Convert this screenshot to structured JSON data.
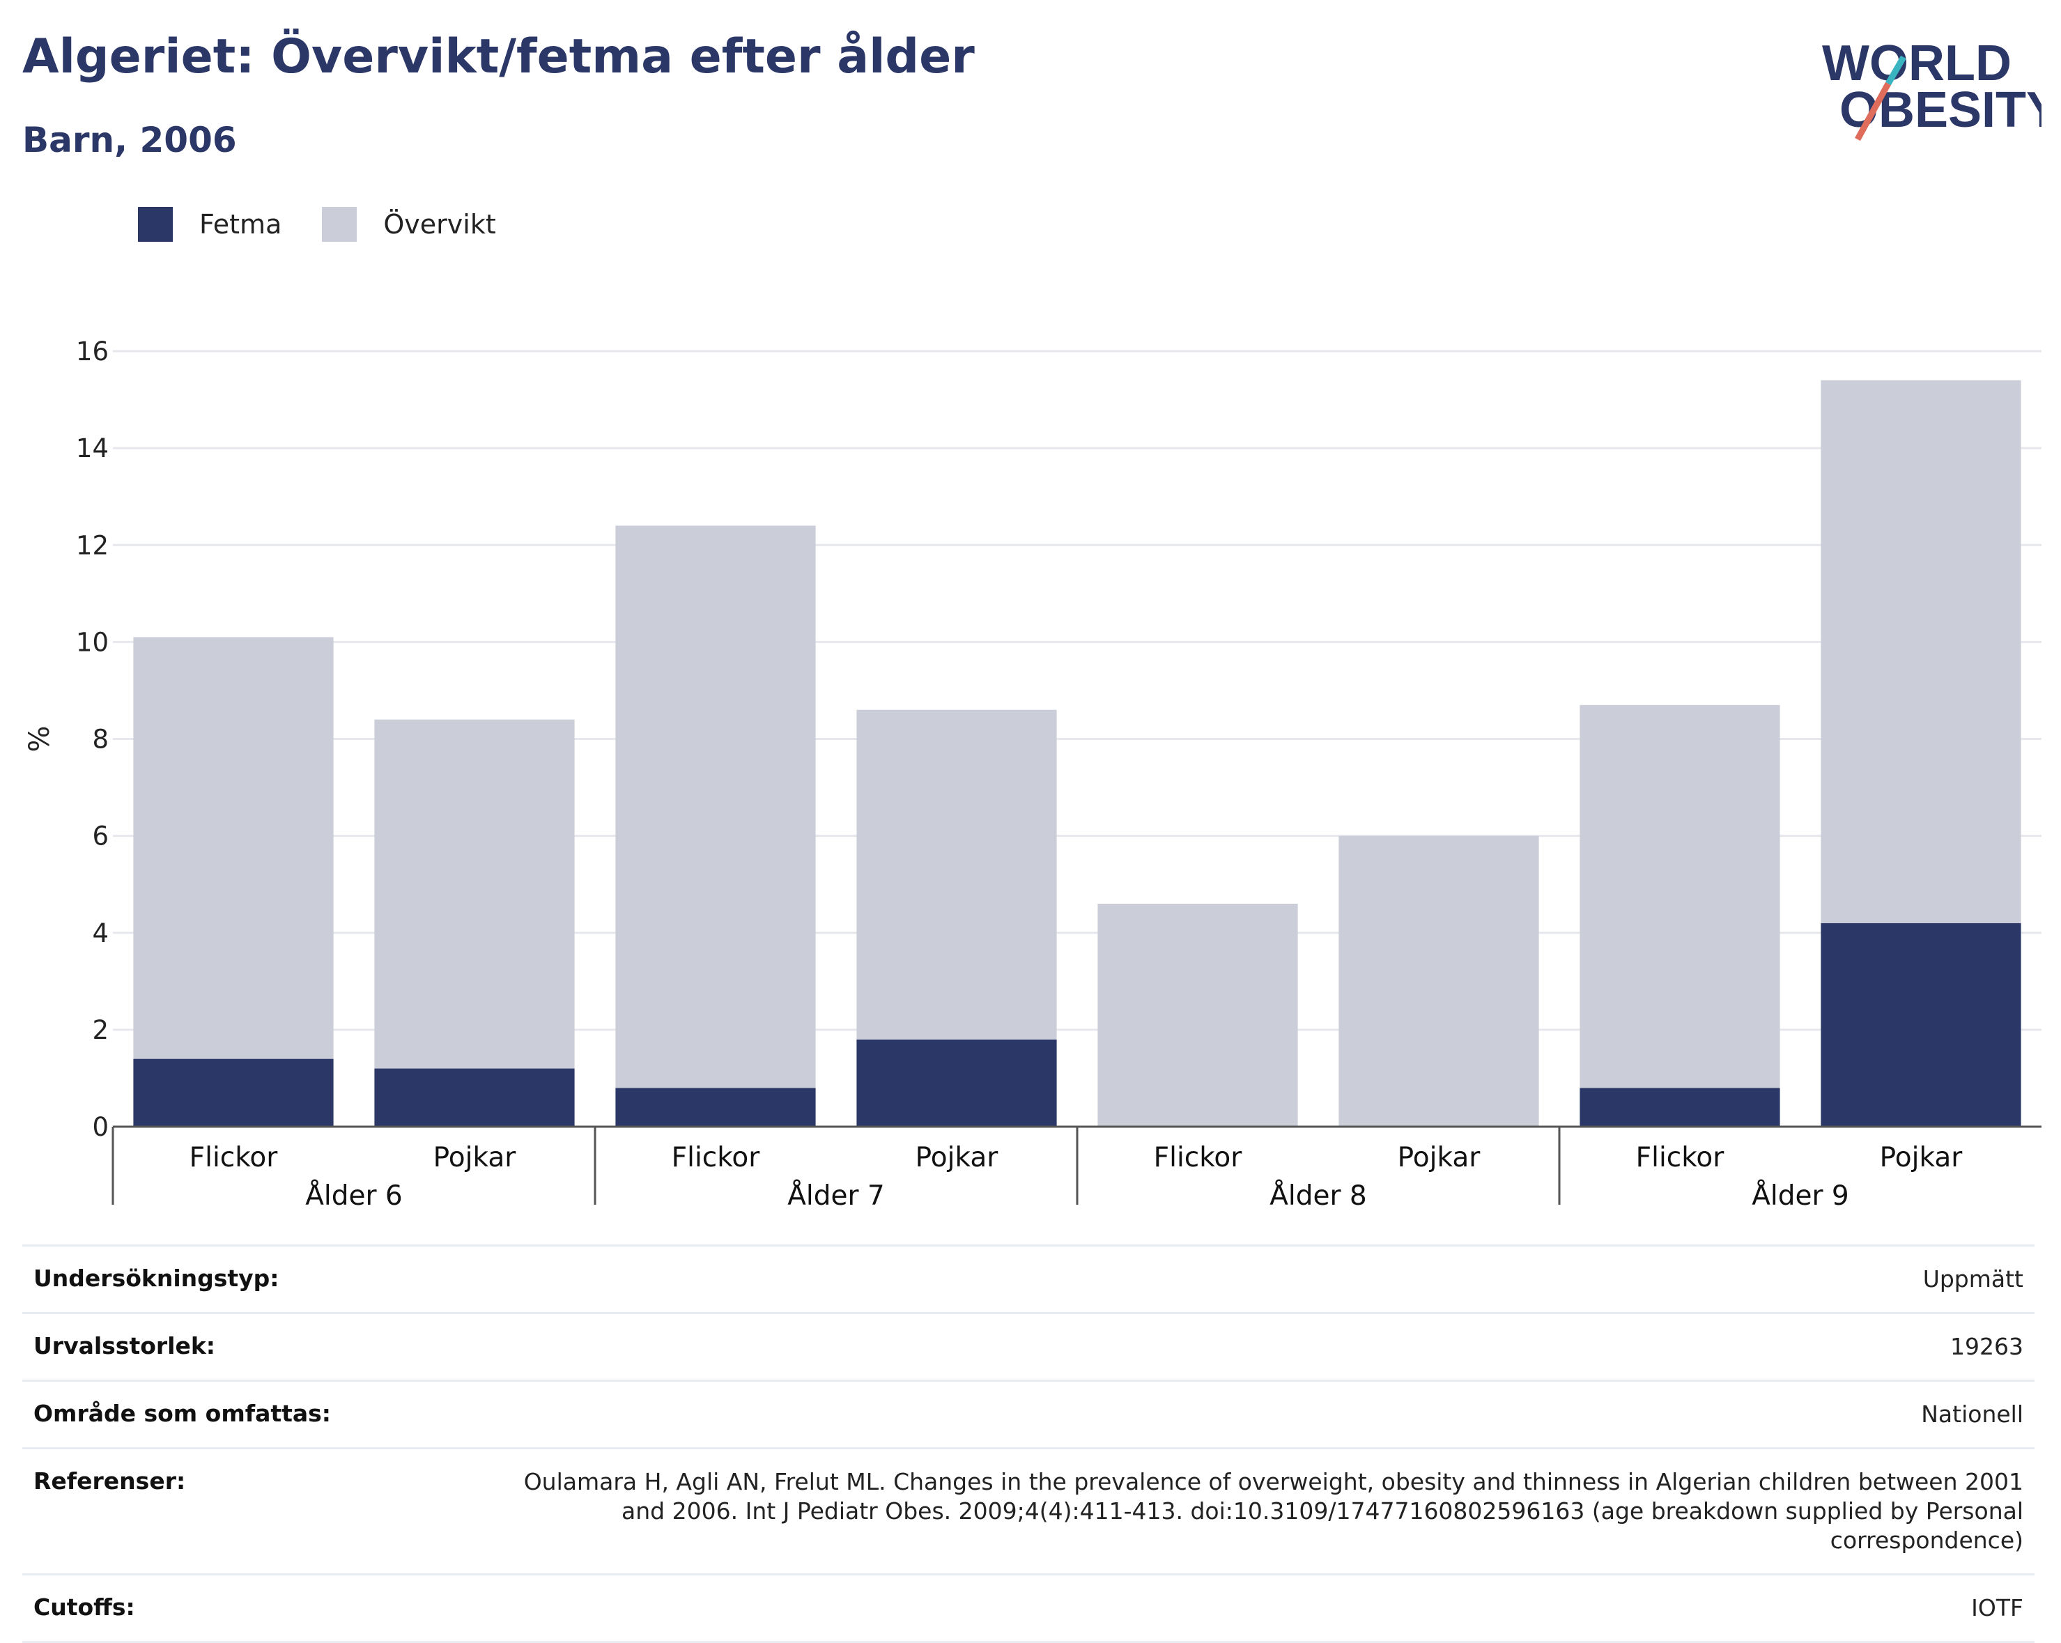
{
  "header": {
    "title": "Algeriet: Övervikt/fetma efter ålder",
    "subtitle": "Barn, 2006"
  },
  "logo": {
    "line1": "WORLD",
    "line2": "OBESITY",
    "colors": [
      "#2b3767",
      "#e06c5b",
      "#3bb4c1"
    ]
  },
  "colors": {
    "fetma": "#2b3767",
    "overvikt": "#cbcdd9",
    "grid": "#e6e8ee",
    "text": "#2b3767"
  },
  "chart_data": {
    "type": "bar",
    "stacked": true,
    "ylabel": "%",
    "ylim": [
      0,
      16
    ],
    "yticks": [
      0,
      2,
      4,
      6,
      8,
      10,
      12,
      14,
      16
    ],
    "grid": true,
    "legend_position": "top-left",
    "groups": [
      "Ålder 6",
      "Ålder 7",
      "Ålder 8",
      "Ålder 9"
    ],
    "categories": [
      "Flickor",
      "Pojkar",
      "Flickor",
      "Pojkar",
      "Flickor",
      "Pojkar",
      "Flickor",
      "Pojkar"
    ],
    "series": [
      {
        "name": "Fetma",
        "values": [
          1.4,
          1.2,
          0.8,
          1.8,
          0,
          0,
          0.8,
          4.2
        ]
      },
      {
        "name": "Övervikt",
        "values": [
          8.7,
          7.2,
          11.6,
          6.8,
          4.6,
          6.0,
          7.9,
          11.2
        ]
      }
    ]
  },
  "info": [
    {
      "key": "Undersökningstyp:",
      "value": "Uppmätt"
    },
    {
      "key": "Urvalsstorlek:",
      "value": "19263"
    },
    {
      "key": "Område som omfattas:",
      "value": "Nationell"
    },
    {
      "key": "Referenser:",
      "value": "Oulamara H, Agli AN, Frelut ML. Changes in the prevalence of overweight, obesity and thinness in Algerian children between 2001 and 2006. Int J Pediatr Obes. 2009;4(4):411-413. doi:10.3109/17477160802596163 (age breakdown supplied by Personal correspondence)"
    },
    {
      "key": "Cutoffs:",
      "value": "IOTF"
    }
  ]
}
